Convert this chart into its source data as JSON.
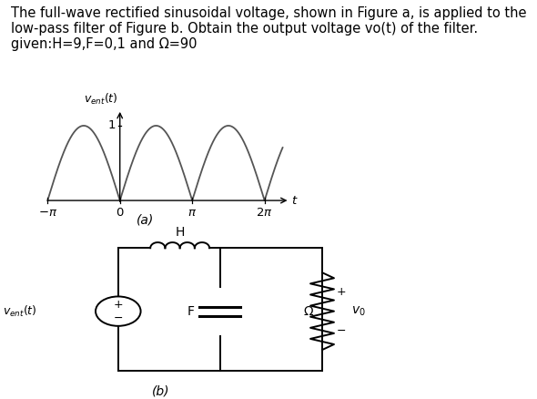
{
  "background_color": "#ffffff",
  "title_text": "The full-wave rectified sinusoidal voltage, shown in Figure a, is applied to the\nlow-pass filter of Figure b. Obtain the output voltage vo(t) of the filter.\ngiven:H=9,F=0,1 and Ω=90",
  "title_fontsize": 10.5,
  "fig_a_label": "(a)",
  "fig_b_label": "(b)"
}
